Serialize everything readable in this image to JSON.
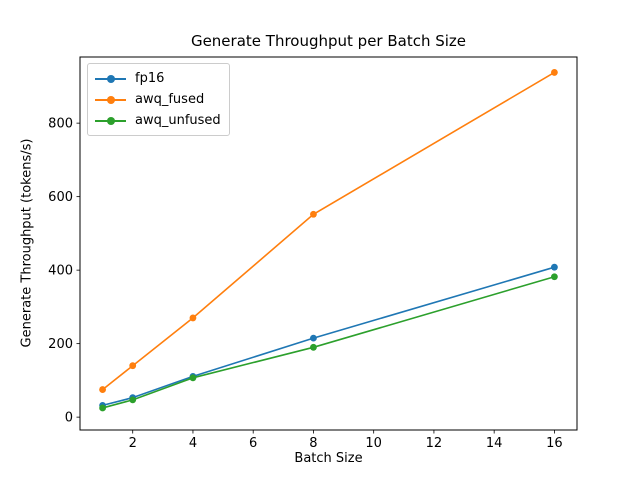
{
  "chart_data": {
    "type": "line",
    "title": "Generate Throughput per Batch Size",
    "xlabel": "Batch Size",
    "ylabel": "Generate Throughput (tokens/s)",
    "x": [
      1,
      2,
      4,
      8,
      16
    ],
    "series": [
      {
        "name": "fp16",
        "color": "#1f77b4",
        "values": [
          32,
          53,
          111,
          215,
          408
        ]
      },
      {
        "name": "awq_fused",
        "color": "#ff7f0e",
        "values": [
          75,
          140,
          270,
          552,
          938
        ]
      },
      {
        "name": "awq_unfused",
        "color": "#2ca02c",
        "values": [
          25,
          47,
          107,
          190,
          382
        ]
      }
    ],
    "xlim": [
      0.25,
      16.75
    ],
    "ylim": [
      -35,
      980
    ],
    "xticks": [
      2,
      4,
      6,
      8,
      10,
      12,
      14,
      16
    ],
    "yticks": [
      0,
      200,
      400,
      600,
      800
    ],
    "grid": false,
    "marker": "o",
    "legend_position": "upper left",
    "colors": {
      "axis": "#000000",
      "legend_border": "#cccccc",
      "background": "#ffffff"
    }
  }
}
